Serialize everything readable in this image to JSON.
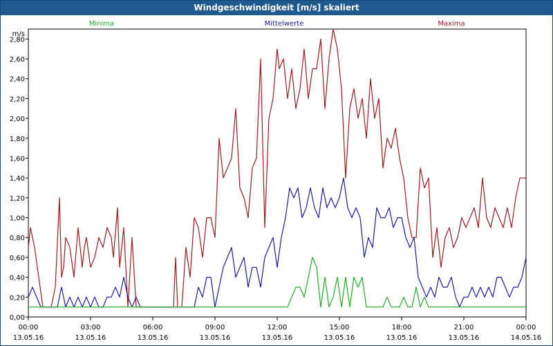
{
  "window": {
    "title": "Windgeschwindigkeit [m/s] skaliert"
  },
  "legend": [
    {
      "name": "Minima",
      "color": "#22aa22"
    },
    {
      "name": "Mittelwerte",
      "color": "#1a1aa0"
    },
    {
      "name": "Maxima",
      "color": "#9a1a1a"
    }
  ],
  "chart_data": {
    "type": "line",
    "title": "Windgeschwindigkeit [m/s] skaliert",
    "ylabel": "m/s",
    "ylim": [
      0,
      2.9
    ],
    "yticks": [
      "0,00",
      "0,20",
      "0,40",
      "0,60",
      "0,80",
      "1,00",
      "1,20",
      "1,40",
      "1,60",
      "1,80",
      "2,00",
      "2,20",
      "2,40",
      "2,60",
      "2,80"
    ],
    "xticks": [
      {
        "time": "00:00",
        "date": "13.05.16"
      },
      {
        "time": "03:00",
        "date": "13.05.16"
      },
      {
        "time": "06:00",
        "date": "13.05.16"
      },
      {
        "time": "09:00",
        "date": "13.05.16"
      },
      {
        "time": "12:00",
        "date": "13.05.16"
      },
      {
        "time": "15:00",
        "date": "13.05.16"
      },
      {
        "time": "18:00",
        "date": "13.05.16"
      },
      {
        "time": "21:00",
        "date": "13.05.16"
      },
      {
        "time": "00:00",
        "date": "14.05.16"
      }
    ],
    "x_unit": "hours since 13.05.16 00:00",
    "xlim": [
      0,
      24
    ],
    "grid": true,
    "legend_position": "top",
    "series": [
      {
        "name": "Maxima",
        "color": "#9a1a1a",
        "x": [
          0,
          0.1,
          0.3,
          0.5,
          0.7,
          0.9,
          1.1,
          1.3,
          1.5,
          1.6,
          1.7,
          1.8,
          2.0,
          2.2,
          2.4,
          2.6,
          2.7,
          2.8,
          3.0,
          3.2,
          3.4,
          3.6,
          3.8,
          4.0,
          4.1,
          4.3,
          4.4,
          4.6,
          4.8,
          5.0,
          5.2,
          5.4,
          5.6,
          5.8,
          6.0,
          6.5,
          7.0,
          7.1,
          7.2,
          7.4,
          7.6,
          7.8,
          8.0,
          8.2,
          8.4,
          8.6,
          8.8,
          9.0,
          9.2,
          9.4,
          9.6,
          9.8,
          10.0,
          10.2,
          10.4,
          10.6,
          10.8,
          11.0,
          11.2,
          11.4,
          11.6,
          11.8,
          12.0,
          12.1,
          12.3,
          12.5,
          12.7,
          12.9,
          13.1,
          13.3,
          13.5,
          13.7,
          13.9,
          14.1,
          14.3,
          14.5,
          14.7,
          14.9,
          15.1,
          15.3,
          15.5,
          15.7,
          15.9,
          16.1,
          16.3,
          16.5,
          16.7,
          16.9,
          17.1,
          17.3,
          17.5,
          17.7,
          17.9,
          18.1,
          18.3,
          18.5,
          18.7,
          18.9,
          19.1,
          19.3,
          19.5,
          19.7,
          19.9,
          20.1,
          20.3,
          20.5,
          20.7,
          20.9,
          21.1,
          21.3,
          21.5,
          21.7,
          21.9,
          22.1,
          22.3,
          22.5,
          22.7,
          22.9,
          23.1,
          23.3,
          23.5,
          23.7,
          24.0
        ],
        "values": [
          0.7,
          0.9,
          0.7,
          0.4,
          0.1,
          0.1,
          0.1,
          0.3,
          1.2,
          0.4,
          0.5,
          0.8,
          0.7,
          0.4,
          0.9,
          0.5,
          0.7,
          0.8,
          0.5,
          0.6,
          0.8,
          0.7,
          0.9,
          0.8,
          0.6,
          1.1,
          0.5,
          0.9,
          0.1,
          0.8,
          0.1,
          0.1,
          0.1,
          0.1,
          0.1,
          0.1,
          0.1,
          0.6,
          0.1,
          0.1,
          0.7,
          0.4,
          1.0,
          0.9,
          0.6,
          1.0,
          1.0,
          0.8,
          1.8,
          1.4,
          1.5,
          1.6,
          2.1,
          1.3,
          1.2,
          1.0,
          1.5,
          1.6,
          2.6,
          0.9,
          2.0,
          2.2,
          2.7,
          2.5,
          2.6,
          2.2,
          2.5,
          2.1,
          2.3,
          2.7,
          2.2,
          2.5,
          2.5,
          2.8,
          2.1,
          2.6,
          2.9,
          2.7,
          2.3,
          1.4,
          2.1,
          2.3,
          2.0,
          2.2,
          1.8,
          2.4,
          2.0,
          2.2,
          1.5,
          1.8,
          1.7,
          1.9,
          1.6,
          1.4,
          1.0,
          0.8,
          0.8,
          1.5,
          1.3,
          1.4,
          0.6,
          0.9,
          0.5,
          0.8,
          0.9,
          0.7,
          0.8,
          1.0,
          0.9,
          1.0,
          1.1,
          0.9,
          1.4,
          1.0,
          0.9,
          1.1,
          1.0,
          0.9,
          1.1,
          0.9,
          1.2,
          1.4,
          1.4
        ]
      },
      {
        "name": "Mittelwerte",
        "color": "#1a1aa0",
        "x": [
          0,
          0.2,
          0.4,
          0.6,
          0.8,
          1.0,
          1.2,
          1.4,
          1.6,
          1.8,
          2.0,
          2.2,
          2.4,
          2.6,
          2.8,
          3.0,
          3.2,
          3.4,
          3.6,
          3.8,
          4.0,
          4.2,
          4.4,
          4.6,
          4.8,
          5.0,
          5.2,
          5.4,
          5.6,
          5.8,
          6.0,
          7.0,
          8.0,
          8.2,
          8.4,
          8.6,
          8.8,
          9.0,
          9.2,
          9.4,
          9.6,
          9.8,
          10.0,
          10.2,
          10.4,
          10.6,
          10.8,
          11.0,
          11.2,
          11.4,
          11.6,
          11.8,
          12.0,
          12.2,
          12.4,
          12.6,
          12.8,
          13.0,
          13.2,
          13.4,
          13.6,
          13.8,
          14.0,
          14.2,
          14.4,
          14.6,
          14.8,
          15.0,
          15.2,
          15.4,
          15.6,
          15.8,
          16.0,
          16.2,
          16.4,
          16.6,
          16.8,
          17.0,
          17.2,
          17.4,
          17.6,
          17.8,
          18.0,
          18.2,
          18.4,
          18.6,
          18.8,
          19.0,
          19.2,
          19.4,
          19.6,
          19.8,
          20.0,
          20.2,
          20.4,
          20.6,
          20.8,
          21.0,
          21.2,
          21.4,
          21.6,
          21.8,
          22.0,
          22.2,
          22.4,
          22.6,
          22.8,
          23.0,
          23.2,
          23.4,
          23.6,
          23.8,
          24.0
        ],
        "values": [
          0.2,
          0.3,
          0.2,
          0.1,
          0.1,
          0.1,
          0.1,
          0.1,
          0.3,
          0.1,
          0.2,
          0.1,
          0.2,
          0.1,
          0.2,
          0.1,
          0.2,
          0.1,
          0.1,
          0.2,
          0.2,
          0.3,
          0.2,
          0.4,
          0.2,
          0.1,
          0.2,
          0.1,
          0.1,
          0.1,
          0.1,
          0.1,
          0.1,
          0.3,
          0.2,
          0.4,
          0.4,
          0.1,
          0.3,
          0.5,
          0.6,
          0.7,
          0.4,
          0.5,
          0.6,
          0.3,
          0.5,
          0.5,
          0.3,
          0.6,
          0.7,
          0.8,
          0.5,
          0.8,
          1.0,
          1.3,
          1.2,
          1.3,
          1.0,
          1.1,
          1.3,
          1.1,
          1.0,
          1.3,
          1.1,
          1.2,
          1.1,
          1.2,
          1.4,
          1.1,
          1.0,
          1.1,
          1.0,
          0.6,
          0.8,
          0.7,
          1.1,
          1.0,
          1.0,
          1.1,
          0.9,
          1.0,
          1.0,
          0.8,
          0.7,
          0.8,
          0.4,
          0.3,
          0.2,
          0.3,
          0.2,
          0.4,
          0.3,
          0.3,
          0.4,
          0.2,
          0.1,
          0.2,
          0.2,
          0.3,
          0.2,
          0.3,
          0.2,
          0.3,
          0.2,
          0.4,
          0.4,
          0.3,
          0.2,
          0.3,
          0.3,
          0.4,
          0.6
        ]
      },
      {
        "name": "Minima",
        "color": "#22aa22",
        "x": [
          0,
          12.3,
          12.5,
          12.7,
          12.9,
          13.1,
          13.3,
          13.5,
          13.7,
          13.9,
          14.1,
          14.3,
          14.5,
          14.7,
          14.9,
          15.1,
          15.3,
          15.5,
          15.7,
          15.9,
          16.1,
          16.3,
          16.5,
          16.7,
          16.9,
          17.1,
          17.3,
          17.5,
          17.7,
          17.9,
          18.1,
          18.3,
          18.5,
          18.7,
          18.9,
          19.1,
          19.3,
          19.5,
          24.0
        ],
        "values": [
          0.1,
          0.1,
          0.1,
          0.2,
          0.3,
          0.3,
          0.2,
          0.4,
          0.6,
          0.5,
          0.1,
          0.4,
          0.1,
          0.2,
          0.4,
          0.1,
          0.4,
          0.1,
          0.4,
          0.3,
          0.4,
          0.1,
          0.1,
          0.1,
          0.1,
          0.1,
          0.2,
          0.1,
          0.1,
          0.1,
          0.2,
          0.1,
          0.1,
          0.3,
          0.1,
          0.2,
          0.1,
          0.1,
          0.1
        ]
      }
    ]
  }
}
